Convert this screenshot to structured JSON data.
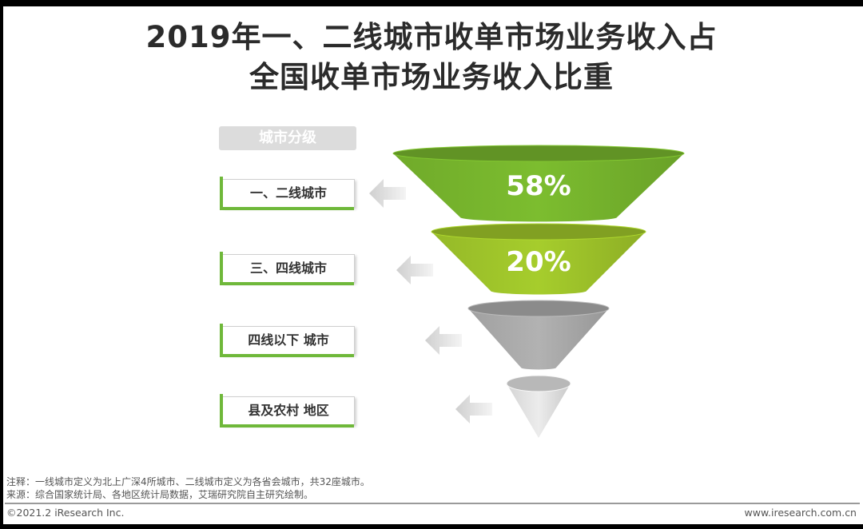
{
  "title_line1": "2019年一、二线城市收单市场业务收入占",
  "title_line2": "全国收单市场业务收入比重",
  "header_label": "城市分级",
  "chart_data": {
    "type": "funnel",
    "categories": [
      "一、二线城市",
      "三、四线城市",
      "四线以下 城市",
      "县及农村 地区"
    ],
    "values": [
      58,
      20,
      null,
      null
    ],
    "value_labels": [
      "58%",
      "20%",
      "",
      ""
    ],
    "colors": [
      "#7cbd2f",
      "#a6cd2c",
      "#b2b2b2",
      "#ececec"
    ]
  },
  "footnote_note": "注释：一线城市定义为北上广深4所城市、二线城市定义为各省会城市，共32座城市。",
  "footnote_source": "来源：综合国家统计局、各地区统计局数据，艾瑞研究院自主研究绘制。",
  "copyright": "©2021.2 iResearch Inc.",
  "website": "www.iresearch.com.cn"
}
